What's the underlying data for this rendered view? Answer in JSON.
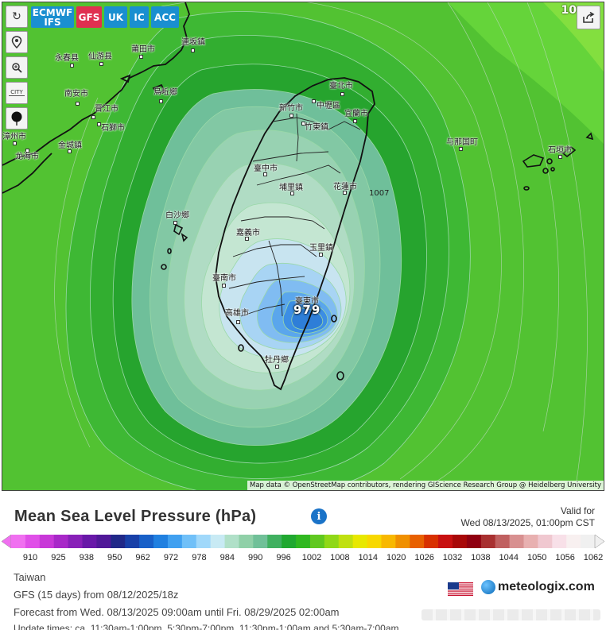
{
  "model_tabs": [
    {
      "label": "ECMWF IFS",
      "color": "#1a8fd0",
      "active": false
    },
    {
      "label": "GFS",
      "color": "#e03050",
      "active": true
    },
    {
      "label": "UK",
      "color": "#1a8fd0",
      "active": false
    },
    {
      "label": "IC",
      "color": "#1a8fd0",
      "active": false
    },
    {
      "label": "ACC",
      "color": "#1a8fd0",
      "active": false
    }
  ],
  "tools": {
    "refresh_icon": "refresh-icon",
    "location_icon": "map-pin-icon",
    "zoom_icon": "zoom-icon",
    "city_label": "CITY",
    "marker_icon": "dot-marker-icon",
    "share_icon": "share-icon"
  },
  "map": {
    "corner_value": "10",
    "center_value": "979",
    "isobar_label": "1007",
    "attribution": "Map data © OpenStreetMap contributors, rendering GIScience Research Group @ Heidelberg University",
    "cities": [
      {
        "name": "連坂鎮"
      },
      {
        "name": "永春县"
      },
      {
        "name": "仙游县"
      },
      {
        "name": "莆田市"
      },
      {
        "name": "南安市"
      },
      {
        "name": "晋江市"
      },
      {
        "name": "石獅市"
      },
      {
        "name": "烏坵鄉"
      },
      {
        "name": "漳州市"
      },
      {
        "name": "金城鎮"
      },
      {
        "name": "龙海市"
      },
      {
        "name": "臺北市"
      },
      {
        "name": "新竹市"
      },
      {
        "name": "中壢區"
      },
      {
        "name": "宜蘭市"
      },
      {
        "name": "竹東鎮"
      },
      {
        "name": "臺中市"
      },
      {
        "name": "埔里鎮"
      },
      {
        "name": "花蓮市"
      },
      {
        "name": "白沙鄉"
      },
      {
        "name": "嘉義市"
      },
      {
        "name": "玉里鎮"
      },
      {
        "name": "臺南市"
      },
      {
        "name": "臺東市"
      },
      {
        "name": "高雄市"
      },
      {
        "name": "牡丹鄉"
      },
      {
        "name": "与那国町"
      },
      {
        "name": "石垣市"
      }
    ]
  },
  "info": {
    "title": "Mean Sea Level Pressure (hPa)",
    "valid_label": "Valid for",
    "valid_time": "Wed 08/13/2025, 01:00pm CST",
    "region": "Taiwan",
    "model_run": "GFS  (15 days)  from 08/12/2025/18z",
    "forecast_range": "Forecast from Wed. 08/13/2025 09:00am until Fri. 08/29/2025 02:00am",
    "update_times": "Update times: ca. 11:30am-1:00pm, 5:30pm-7:00pm, 11:30pm-1:00am and 5:30am-7:00am",
    "brand": "meteologix.com",
    "flag_icon": "us-flag-icon"
  },
  "scale": {
    "ticks": [
      "910",
      "925",
      "938",
      "950",
      "962",
      "972",
      "978",
      "984",
      "990",
      "996",
      "1002",
      "1008",
      "1014",
      "1020",
      "1026",
      "1032",
      "1038",
      "1044",
      "1050",
      "1056",
      "1062"
    ],
    "colors": [
      "#f070f0",
      "#e050e8",
      "#c838d8",
      "#a828c8",
      "#8820b8",
      "#6818a8",
      "#501898",
      "#202888",
      "#1840a8",
      "#1860c8",
      "#2080e0",
      "#40a0f0",
      "#70c0f8",
      "#a0d8fa",
      "#c8eaf4",
      "#b0e0c8",
      "#90d0a8",
      "#70c098",
      "#40b060",
      "#20a830",
      "#30b820",
      "#60c820",
      "#90d818",
      "#c0e010",
      "#e8e800",
      "#f8d800",
      "#f8b800",
      "#f09000",
      "#e86000",
      "#d83000",
      "#c81010",
      "#a80808",
      "#900010",
      "#a83030",
      "#c06060",
      "#d89090",
      "#e8b0b0",
      "#f0c8d0",
      "#f8e0e8",
      "#f8f0f0",
      "#f0f0f0"
    ]
  }
}
